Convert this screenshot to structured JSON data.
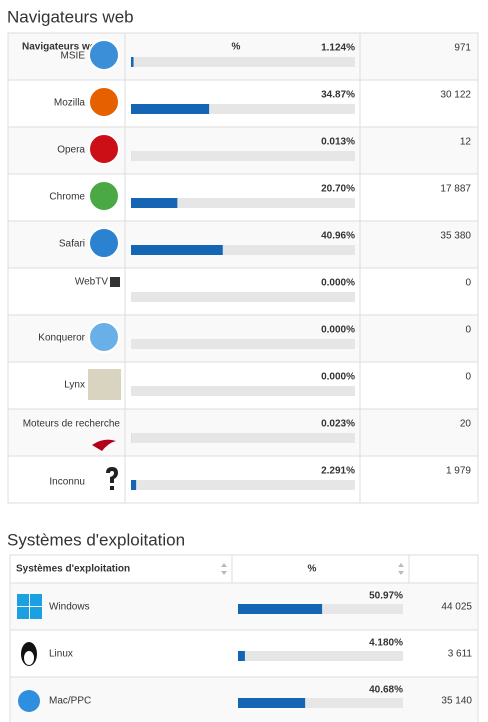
{
  "browsers": {
    "title": "Navigateurs web",
    "header": [
      "Navigateurs web",
      "%"
    ],
    "rows": [
      {
        "name": "MSIE",
        "percent": {
          "value": 1.124,
          "label": "1.124%"
        },
        "hits": "971"
      },
      {
        "name": "Mozilla",
        "percent": {
          "value": 34.87,
          "label": "34.87%"
        },
        "hits": "30 122"
      },
      {
        "name": "Opera",
        "percent": {
          "value": 0.013,
          "label": "0.013%"
        },
        "hits": "12"
      },
      {
        "name": "Chrome",
        "percent": {
          "value": 20.7,
          "label": "20.70%"
        },
        "hits": "17 887"
      },
      {
        "name": "Safari",
        "percent": {
          "value": 40.96,
          "label": "40.96%"
        },
        "hits": "35 380"
      },
      {
        "name": "WebTV",
        "percent": {
          "value": 0,
          "label": "0.000%"
        },
        "hits": "0"
      },
      {
        "name": "Konqueror",
        "percent": {
          "value": 0,
          "label": "0.000%"
        },
        "hits": "0"
      },
      {
        "name": "Lynx",
        "percent": {
          "value": 0,
          "label": "0.000%"
        },
        "hits": "0"
      },
      {
        "name": "Moteurs de recherche",
        "percent": {
          "value": 0.023,
          "label": "0.023%"
        },
        "hits": "20"
      },
      {
        "name": "Inconnu",
        "percent": {
          "value": 2.291,
          "label": "2.291%"
        },
        "hits": "1 979"
      }
    ]
  },
  "systems": {
    "title": "Systèmes d'exploitation",
    "header": [
      "Systèmes d'exploitation",
      "%"
    ],
    "rows": [
      {
        "name": "Windows",
        "percent": {
          "value": 50.97,
          "label": "50.97%"
        },
        "hits": "44 025"
      },
      {
        "name": "Linux",
        "percent": {
          "value": 4.18,
          "label": "4.180%"
        },
        "hits": "3 611"
      },
      {
        "name": "Mac/PPC",
        "percent": {
          "value": 40.68,
          "label": "40.68%"
        },
        "hits": "35 140"
      }
    ]
  }
}
